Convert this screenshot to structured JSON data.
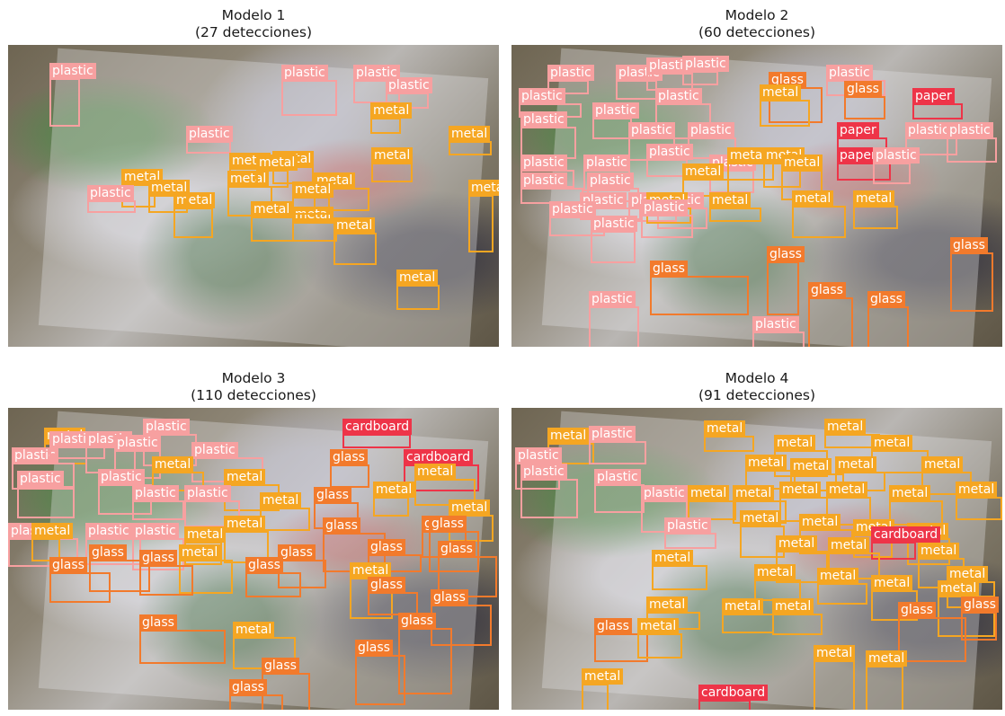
{
  "colors": {
    "plastic": "#f7a0a0",
    "metal": "#f5a622",
    "glass": "#f27a2c",
    "paper": "#ee3448",
    "cardboard": "#ee3448"
  },
  "panels": [
    {
      "title": "Modelo 1",
      "subtitle": "(27 detecciones)",
      "boxes": [
        {
          "label": "plastic",
          "cls": "plastic"
        },
        {
          "label": "plastic",
          "cls": "plastic"
        },
        {
          "label": "plastic",
          "cls": "plastic"
        },
        {
          "label": "plastic",
          "cls": "plastic"
        },
        {
          "label": "metal",
          "cls": "metal"
        },
        {
          "label": "metal",
          "cls": "metal"
        },
        {
          "label": "plastic",
          "cls": "plastic"
        },
        {
          "label": "metal",
          "cls": "metal"
        },
        {
          "label": "metal",
          "cls": "metal"
        },
        {
          "label": "metal",
          "cls": "metal"
        },
        {
          "label": "metal",
          "cls": "metal"
        },
        {
          "label": "metal",
          "cls": "metal"
        },
        {
          "label": "metal",
          "cls": "metal"
        },
        {
          "label": "plastic",
          "cls": "plastic"
        },
        {
          "label": "metal",
          "cls": "metal"
        },
        {
          "label": "metal",
          "cls": "metal"
        },
        {
          "label": "metal",
          "cls": "metal"
        },
        {
          "label": "metal",
          "cls": "metal"
        },
        {
          "label": "metal",
          "cls": "metal"
        },
        {
          "label": "metal",
          "cls": "metal"
        },
        {
          "label": "metal",
          "cls": "metal"
        },
        {
          "label": "metal",
          "cls": "metal"
        },
        {
          "label": "metal",
          "cls": "metal"
        }
      ]
    },
    {
      "title": "Modelo 2",
      "subtitle": "(60 detecciones)",
      "boxes": [
        {
          "label": "plastic",
          "cls": "plastic"
        },
        {
          "label": "plastic",
          "cls": "plastic"
        },
        {
          "label": "plastic",
          "cls": "plastic"
        },
        {
          "label": "plastic",
          "cls": "plastic"
        },
        {
          "label": "plastic",
          "cls": "plastic"
        },
        {
          "label": "glass",
          "cls": "glass"
        },
        {
          "label": "plastic",
          "cls": "plastic"
        },
        {
          "label": "paper",
          "cls": "paper"
        },
        {
          "label": "plastic",
          "cls": "plastic"
        },
        {
          "label": "plastic",
          "cls": "plastic"
        },
        {
          "label": "plastic",
          "cls": "plastic"
        },
        {
          "label": "metal",
          "cls": "metal"
        },
        {
          "label": "glass",
          "cls": "glass"
        },
        {
          "label": "paper",
          "cls": "paper"
        },
        {
          "label": "plastic",
          "cls": "plastic"
        },
        {
          "label": "plastic",
          "cls": "plastic"
        },
        {
          "label": "plastic",
          "cls": "plastic"
        },
        {
          "label": "plastic",
          "cls": "plastic"
        },
        {
          "label": "plastic",
          "cls": "plastic"
        },
        {
          "label": "plastic",
          "cls": "plastic"
        },
        {
          "label": "plastic",
          "cls": "plastic"
        },
        {
          "label": "plastic",
          "cls": "plastic"
        },
        {
          "label": "paper",
          "cls": "paper"
        },
        {
          "label": "plastic",
          "cls": "plastic"
        },
        {
          "label": "plastic",
          "cls": "plastic"
        },
        {
          "label": "metal",
          "cls": "metal"
        },
        {
          "label": "metal",
          "cls": "metal"
        },
        {
          "label": "metal",
          "cls": "metal"
        },
        {
          "label": "metal",
          "cls": "metal"
        },
        {
          "label": "plastic",
          "cls": "plastic"
        },
        {
          "label": "plastic",
          "cls": "plastic"
        },
        {
          "label": "plastic",
          "cls": "plastic"
        },
        {
          "label": "plastic",
          "cls": "plastic"
        },
        {
          "label": "metal",
          "cls": "metal"
        },
        {
          "label": "plastic",
          "cls": "plastic"
        },
        {
          "label": "metal",
          "cls": "metal"
        },
        {
          "label": "metal",
          "cls": "metal"
        },
        {
          "label": "metal",
          "cls": "metal"
        },
        {
          "label": "plastic",
          "cls": "plastic"
        },
        {
          "label": "plastic",
          "cls": "plastic"
        },
        {
          "label": "glass",
          "cls": "glass"
        },
        {
          "label": "glass",
          "cls": "glass"
        },
        {
          "label": "glass",
          "cls": "glass"
        },
        {
          "label": "plastic",
          "cls": "plastic"
        },
        {
          "label": "glass",
          "cls": "glass"
        },
        {
          "label": "glass",
          "cls": "glass"
        },
        {
          "label": "plastic",
          "cls": "plastic"
        }
      ]
    },
    {
      "title": "Modelo 3",
      "subtitle": "(110 detecciones)",
      "boxes": [
        {
          "label": "metal",
          "cls": "metal"
        },
        {
          "label": "plastic",
          "cls": "plastic"
        },
        {
          "label": "plastic",
          "cls": "plastic"
        },
        {
          "label": "cardboard",
          "cls": "cardboard"
        },
        {
          "label": "plastic",
          "cls": "plastic"
        },
        {
          "label": "plastic",
          "cls": "plastic"
        },
        {
          "label": "plastic",
          "cls": "plastic"
        },
        {
          "label": "glass",
          "cls": "glass"
        },
        {
          "label": "cardboard",
          "cls": "cardboard"
        },
        {
          "label": "plastic",
          "cls": "plastic"
        },
        {
          "label": "metal",
          "cls": "metal"
        },
        {
          "label": "metal",
          "cls": "metal"
        },
        {
          "label": "plastic",
          "cls": "plastic"
        },
        {
          "label": "plastic",
          "cls": "plastic"
        },
        {
          "label": "metal",
          "cls": "metal"
        },
        {
          "label": "metal",
          "cls": "metal"
        },
        {
          "label": "plastic",
          "cls": "plastic"
        },
        {
          "label": "plastic",
          "cls": "plastic"
        },
        {
          "label": "glass",
          "cls": "glass"
        },
        {
          "label": "metal",
          "cls": "metal"
        },
        {
          "label": "metal",
          "cls": "metal"
        },
        {
          "label": "plastic",
          "cls": "plastic"
        },
        {
          "label": "plastic",
          "cls": "plastic"
        },
        {
          "label": "glass",
          "cls": "glass"
        },
        {
          "label": "plastic",
          "cls": "plastic"
        },
        {
          "label": "metal",
          "cls": "metal"
        },
        {
          "label": "glass",
          "cls": "glass"
        },
        {
          "label": "metal",
          "cls": "metal"
        },
        {
          "label": "glass",
          "cls": "glass"
        },
        {
          "label": "metal",
          "cls": "metal"
        },
        {
          "label": "glass",
          "cls": "glass"
        },
        {
          "label": "glass",
          "cls": "glass"
        },
        {
          "label": "metal",
          "cls": "metal"
        },
        {
          "label": "glass",
          "cls": "glass"
        },
        {
          "label": "glass",
          "cls": "glass"
        },
        {
          "label": "glass",
          "cls": "glass"
        },
        {
          "label": "metal",
          "cls": "metal"
        },
        {
          "label": "glass",
          "cls": "glass"
        },
        {
          "label": "glass",
          "cls": "glass"
        },
        {
          "label": "glass",
          "cls": "glass"
        },
        {
          "label": "glass",
          "cls": "glass"
        },
        {
          "label": "glass",
          "cls": "glass"
        },
        {
          "label": "glass",
          "cls": "glass"
        },
        {
          "label": "metal",
          "cls": "metal"
        },
        {
          "label": "glass",
          "cls": "glass"
        },
        {
          "label": "glass",
          "cls": "glass"
        },
        {
          "label": "glass",
          "cls": "glass"
        }
      ]
    },
    {
      "title": "Modelo 4",
      "subtitle": "(91 detecciones)",
      "boxes": [
        {
          "label": "metal",
          "cls": "metal"
        },
        {
          "label": "plastic",
          "cls": "plastic"
        },
        {
          "label": "plastic",
          "cls": "plastic"
        },
        {
          "label": "metal",
          "cls": "metal"
        },
        {
          "label": "metal",
          "cls": "metal"
        },
        {
          "label": "plastic",
          "cls": "plastic"
        },
        {
          "label": "metal",
          "cls": "metal"
        },
        {
          "label": "metal",
          "cls": "metal"
        },
        {
          "label": "metal",
          "cls": "metal"
        },
        {
          "label": "plastic",
          "cls": "plastic"
        },
        {
          "label": "metal",
          "cls": "metal"
        },
        {
          "label": "metal",
          "cls": "metal"
        },
        {
          "label": "metal",
          "cls": "metal"
        },
        {
          "label": "metal",
          "cls": "metal"
        },
        {
          "label": "metal",
          "cls": "metal"
        },
        {
          "label": "plastic",
          "cls": "plastic"
        },
        {
          "label": "metal",
          "cls": "metal"
        },
        {
          "label": "metal",
          "cls": "metal"
        },
        {
          "label": "metal",
          "cls": "metal"
        },
        {
          "label": "metal",
          "cls": "metal"
        },
        {
          "label": "metal",
          "cls": "metal"
        },
        {
          "label": "metal",
          "cls": "metal"
        },
        {
          "label": "plastic",
          "cls": "plastic"
        },
        {
          "label": "metal",
          "cls": "metal"
        },
        {
          "label": "metal",
          "cls": "metal"
        },
        {
          "label": "cardboard",
          "cls": "cardboard"
        },
        {
          "label": "metal",
          "cls": "metal"
        },
        {
          "label": "metal",
          "cls": "metal"
        },
        {
          "label": "metal",
          "cls": "metal"
        },
        {
          "label": "metal",
          "cls": "metal"
        },
        {
          "label": "metal",
          "cls": "metal"
        },
        {
          "label": "metal",
          "cls": "metal"
        },
        {
          "label": "metal",
          "cls": "metal"
        },
        {
          "label": "metal",
          "cls": "metal"
        },
        {
          "label": "metal",
          "cls": "metal"
        },
        {
          "label": "metal",
          "cls": "metal"
        },
        {
          "label": "metal",
          "cls": "metal"
        },
        {
          "label": "metal",
          "cls": "metal"
        },
        {
          "label": "glass",
          "cls": "glass"
        },
        {
          "label": "glass",
          "cls": "glass"
        },
        {
          "label": "glass",
          "cls": "glass"
        },
        {
          "label": "metal",
          "cls": "metal"
        },
        {
          "label": "metal",
          "cls": "metal"
        },
        {
          "label": "metal",
          "cls": "metal"
        },
        {
          "label": "metal",
          "cls": "metal"
        },
        {
          "label": "cardboard",
          "cls": "cardboard"
        }
      ]
    }
  ]
}
